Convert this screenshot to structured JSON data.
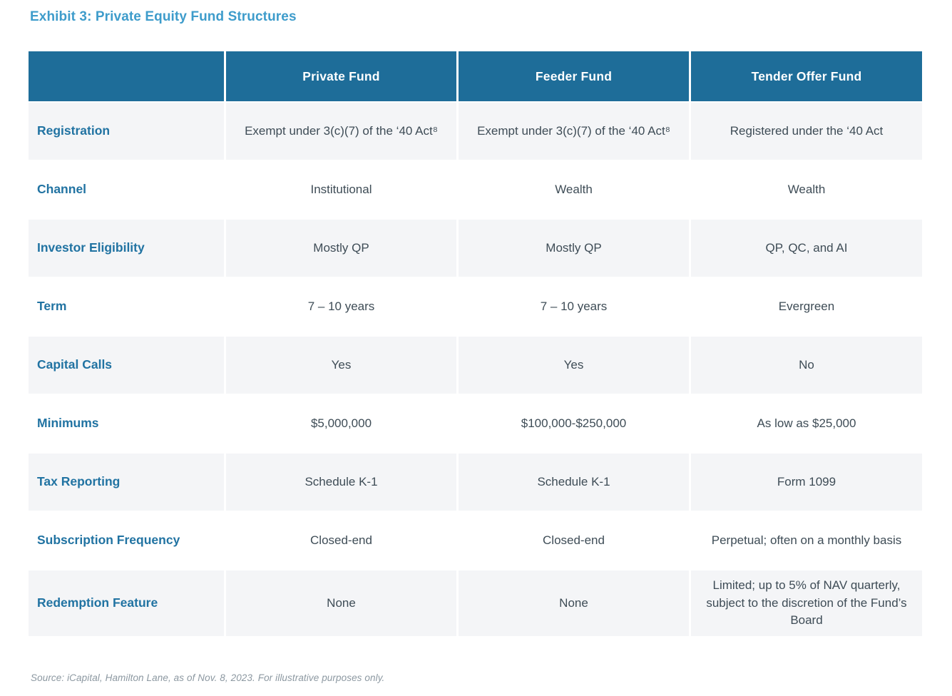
{
  "title": "Exhibit 3: Private Equity Fund Structures",
  "colors": {
    "title_blue": "#3e9ccb",
    "header_bg": "#1e6d99",
    "header_text": "#ffffff",
    "row_label_teal": "#2173a2",
    "value_text": "#3e4c56",
    "alt_row_bg": "#f4f5f7",
    "footer_gray": "#8c98a1"
  },
  "table": {
    "columns": [
      "",
      "Private Fund",
      "Feeder Fund",
      "Tender Offer Fund"
    ],
    "rows": [
      {
        "label": "Registration",
        "values": [
          "Exempt under 3(c)(7) of the ‘40 Act⁸",
          "Exempt under 3(c)(7) of the ‘40 Act⁸",
          "Registered under the ‘40 Act"
        ]
      },
      {
        "label": "Channel",
        "values": [
          "Institutional",
          "Wealth",
          "Wealth"
        ]
      },
      {
        "label": "Investor Eligibility",
        "values": [
          "Mostly QP",
          "Mostly QP",
          "QP, QC, and AI"
        ]
      },
      {
        "label": "Term",
        "values": [
          "7 – 10 years",
          "7 – 10 years",
          "Evergreen"
        ]
      },
      {
        "label": "Capital Calls",
        "values": [
          "Yes",
          "Yes",
          "No"
        ]
      },
      {
        "label": "Minimums",
        "values": [
          "$5,000,000",
          "$100,000-$250,000",
          "As low as $25,000"
        ]
      },
      {
        "label": "Tax Reporting",
        "values": [
          "Schedule K-1",
          "Schedule K-1",
          "Form 1099"
        ]
      },
      {
        "label": "Subscription Frequency",
        "values": [
          "Closed-end",
          "Closed-end",
          "Perpetual; often on a monthly basis"
        ]
      },
      {
        "label": "Redemption Feature",
        "values": [
          "None",
          "None",
          "Limited; up to 5% of NAV quarterly, subject to the discretion of the Fund’s Board"
        ]
      }
    ]
  },
  "footer": "Source: iCapital, Hamilton Lane, as of Nov. 8, 2023. For illustrative purposes only."
}
